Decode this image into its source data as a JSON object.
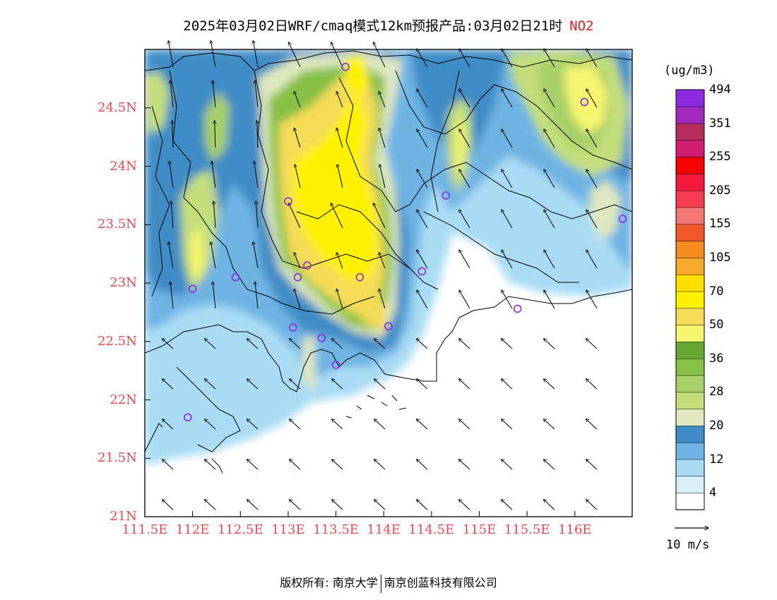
{
  "title": {
    "main": "2025年03月02日WRF/cmaq模式12km预报产品:03月02日21时",
    "pollutant": "NO2"
  },
  "map": {
    "lat_ticks": [
      "24.5N",
      "24N",
      "23.5N",
      "23N",
      "22.5N",
      "22N",
      "21.5N",
      "21N"
    ],
    "lon_ticks": [
      "111.5E",
      "112E",
      "112.5E",
      "113E",
      "113.5E",
      "114E",
      "114.5E",
      "115E",
      "115.5E",
      "116E"
    ],
    "extent": {
      "lon_min": 111.5,
      "lon_max": 116.6,
      "lat_min": 21.0,
      "lat_max": 25.0
    },
    "stations": [
      {
        "lon": 112.0,
        "lat": 22.95
      },
      {
        "lon": 112.45,
        "lat": 23.05
      },
      {
        "lon": 113.0,
        "lat": 23.7
      },
      {
        "lon": 113.2,
        "lat": 23.15
      },
      {
        "lon": 113.1,
        "lat": 23.05
      },
      {
        "lon": 113.75,
        "lat": 23.05
      },
      {
        "lon": 113.6,
        "lat": 24.85
      },
      {
        "lon": 114.65,
        "lat": 23.75
      },
      {
        "lon": 114.4,
        "lat": 23.1
      },
      {
        "lon": 113.05,
        "lat": 22.62
      },
      {
        "lon": 113.35,
        "lat": 22.53
      },
      {
        "lon": 113.5,
        "lat": 22.3
      },
      {
        "lon": 114.05,
        "lat": 22.63
      },
      {
        "lon": 111.95,
        "lat": 21.85
      },
      {
        "lon": 115.4,
        "lat": 22.78
      },
      {
        "lon": 116.1,
        "lat": 24.55
      },
      {
        "lon": 116.5,
        "lat": 23.55
      }
    ]
  },
  "colorbar": {
    "unit": "(ug/m3)",
    "colors": [
      "#ffffff",
      "#d9effb",
      "#a9dcf4",
      "#6fb4e4",
      "#3f8cc6",
      "#dfe8bf",
      "#c4de7c",
      "#a8d06b",
      "#86c046",
      "#67a832",
      "#f5f56f",
      "#f4dc59",
      "#fff200",
      "#ffdf00",
      "#f8a929",
      "#f68b1f",
      "#ef5a28",
      "#f57775",
      "#f63c53",
      "#f21b3f",
      "#fb0000",
      "#cf1e72",
      "#b42d5e",
      "#a228c0",
      "#8a2be2"
    ],
    "labels": [
      "4",
      "12",
      "20",
      "28",
      "36",
      "50",
      "70",
      "105",
      "155",
      "205",
      "255",
      "351",
      "494"
    ]
  },
  "wind_reference": {
    "label": "10 m/s"
  },
  "footer": {
    "left": "版权所有: 南京大学",
    "right": "南京创蓝科技有限公司"
  }
}
